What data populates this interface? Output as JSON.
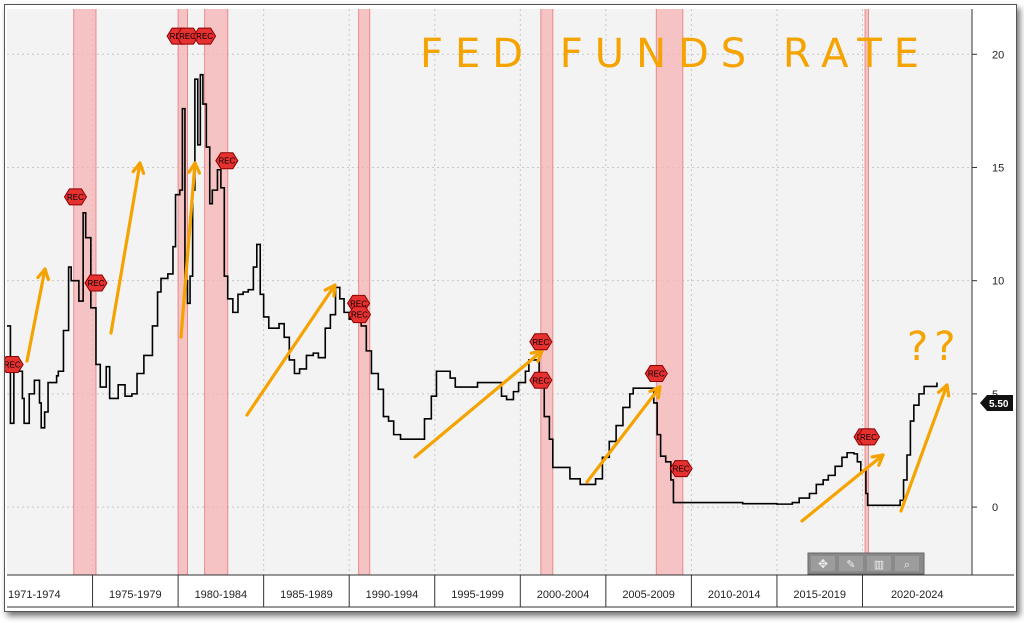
{
  "chart_data": {
    "type": "line",
    "title": "FED FUNDS RATE",
    "annotation_text": "??",
    "last_value_label": "5.50",
    "ylim": [
      -3,
      22
    ],
    "yticks": [
      0,
      5,
      10,
      15,
      20
    ],
    "x_periods": [
      "1971-1974",
      "1975-1979",
      "1980-1984",
      "1985-1989",
      "1990-1994",
      "1995-1999",
      "2000-2004",
      "2005-2009",
      "2010-2014",
      "2015-2019",
      "2020-2024"
    ],
    "recession_label": "REC",
    "recessions": [
      [
        1973.9,
        1975.2
      ],
      [
        1980.0,
        1980.55
      ],
      [
        1981.55,
        1982.9
      ],
      [
        1990.55,
        1991.2
      ],
      [
        2001.2,
        2001.9
      ],
      [
        2007.95,
        2009.5
      ],
      [
        2020.15,
        2020.35
      ]
    ],
    "rec_markers": [
      [
        1970.3,
        6.3
      ],
      [
        1974.0,
        13.7
      ],
      [
        1975.2,
        9.9
      ],
      [
        1980.0,
        20.8
      ],
      [
        1980.55,
        20.8
      ],
      [
        1981.55,
        20.8
      ],
      [
        1982.85,
        15.3
      ],
      [
        1990.55,
        9.0
      ],
      [
        1990.6,
        8.5
      ],
      [
        2001.2,
        7.3
      ],
      [
        2001.2,
        5.6
      ],
      [
        2007.95,
        5.9
      ],
      [
        2009.4,
        1.7
      ],
      [
        2020.15,
        3.1
      ],
      [
        2020.35,
        3.1
      ]
    ],
    "series": [
      {
        "values": [
          [
            1970.0,
            8.0
          ],
          [
            1970.2,
            3.7
          ],
          [
            1970.4,
            6.0
          ],
          [
            1970.6,
            6.0
          ],
          [
            1970.9,
            4.8
          ],
          [
            1971.0,
            3.7
          ],
          [
            1971.3,
            5.0
          ],
          [
            1971.6,
            5.6
          ],
          [
            1971.9,
            4.6
          ],
          [
            1972.0,
            3.5
          ],
          [
            1972.2,
            4.2
          ],
          [
            1972.4,
            5.5
          ],
          [
            1972.6,
            5.5
          ],
          [
            1972.9,
            5.8
          ],
          [
            1973.0,
            6.0
          ],
          [
            1973.3,
            7.8
          ],
          [
            1973.6,
            10.6
          ],
          [
            1973.75,
            10.0
          ],
          [
            1973.9,
            10.0
          ],
          [
            1974.2,
            9.1
          ],
          [
            1974.45,
            13.0
          ],
          [
            1974.6,
            11.9
          ],
          [
            1974.9,
            8.8
          ],
          [
            1975.2,
            6.3
          ],
          [
            1975.45,
            5.3
          ],
          [
            1975.8,
            6.2
          ],
          [
            1976.0,
            4.8
          ],
          [
            1976.5,
            5.4
          ],
          [
            1976.9,
            4.9
          ],
          [
            1977.3,
            5.0
          ],
          [
            1977.6,
            5.9
          ],
          [
            1978.0,
            6.7
          ],
          [
            1978.5,
            8.0
          ],
          [
            1978.8,
            9.5
          ],
          [
            1979.0,
            10.1
          ],
          [
            1979.4,
            10.3
          ],
          [
            1979.7,
            11.5
          ],
          [
            1979.85,
            13.8
          ],
          [
            1980.1,
            14.0
          ],
          [
            1980.25,
            17.6
          ],
          [
            1980.4,
            10.0
          ],
          [
            1980.55,
            9.0
          ],
          [
            1980.7,
            10.2
          ],
          [
            1980.85,
            14.0
          ],
          [
            1980.98,
            18.9
          ],
          [
            1981.15,
            16.0
          ],
          [
            1981.3,
            19.1
          ],
          [
            1981.45,
            17.8
          ],
          [
            1981.65,
            15.9
          ],
          [
            1981.85,
            13.4
          ],
          [
            1982.0,
            14.0
          ],
          [
            1982.3,
            14.9
          ],
          [
            1982.5,
            14.1
          ],
          [
            1982.7,
            10.2
          ],
          [
            1982.9,
            9.2
          ],
          [
            1983.2,
            8.6
          ],
          [
            1983.5,
            9.4
          ],
          [
            1983.8,
            9.5
          ],
          [
            1984.1,
            9.6
          ],
          [
            1984.4,
            10.6
          ],
          [
            1984.6,
            11.6
          ],
          [
            1984.8,
            9.4
          ],
          [
            1985.0,
            8.4
          ],
          [
            1985.3,
            7.9
          ],
          [
            1985.6,
            7.9
          ],
          [
            1985.9,
            8.1
          ],
          [
            1986.2,
            7.5
          ],
          [
            1986.5,
            6.5
          ],
          [
            1986.8,
            5.9
          ],
          [
            1987.1,
            6.1
          ],
          [
            1987.5,
            6.7
          ],
          [
            1987.9,
            6.8
          ],
          [
            1988.2,
            6.6
          ],
          [
            1988.6,
            7.9
          ],
          [
            1988.9,
            8.5
          ],
          [
            1989.2,
            9.7
          ],
          [
            1989.45,
            9.2
          ],
          [
            1989.7,
            8.6
          ],
          [
            1990.0,
            8.3
          ],
          [
            1990.4,
            8.2
          ],
          [
            1990.7,
            8.0
          ],
          [
            1991.0,
            6.9
          ],
          [
            1991.3,
            5.9
          ],
          [
            1991.7,
            5.2
          ],
          [
            1992.0,
            4.0
          ],
          [
            1992.3,
            3.8
          ],
          [
            1992.6,
            3.2
          ],
          [
            1993.0,
            3.0
          ],
          [
            1993.6,
            3.0
          ],
          [
            1994.1,
            3.0
          ],
          [
            1994.4,
            3.9
          ],
          [
            1994.8,
            4.9
          ],
          [
            1995.1,
            6.0
          ],
          [
            1995.5,
            6.0
          ],
          [
            1995.9,
            5.7
          ],
          [
            1996.2,
            5.3
          ],
          [
            1997.0,
            5.3
          ],
          [
            1997.5,
            5.5
          ],
          [
            1998.0,
            5.5
          ],
          [
            1998.6,
            5.5
          ],
          [
            1998.9,
            4.9
          ],
          [
            1999.2,
            4.75
          ],
          [
            1999.6,
            5.1
          ],
          [
            1999.9,
            5.5
          ],
          [
            2000.3,
            6.0
          ],
          [
            2000.5,
            6.5
          ],
          [
            2000.9,
            6.5
          ],
          [
            2001.1,
            5.5
          ],
          [
            2001.4,
            4.0
          ],
          [
            2001.7,
            3.0
          ],
          [
            2001.9,
            1.75
          ],
          [
            2002.3,
            1.75
          ],
          [
            2002.9,
            1.25
          ],
          [
            2003.5,
            1.0
          ],
          [
            2004.0,
            1.0
          ],
          [
            2004.4,
            1.25
          ],
          [
            2004.8,
            2.2
          ],
          [
            2005.2,
            2.9
          ],
          [
            2005.6,
            3.6
          ],
          [
            2006.0,
            4.4
          ],
          [
            2006.4,
            5.0
          ],
          [
            2006.6,
            5.25
          ],
          [
            2007.2,
            5.25
          ],
          [
            2007.6,
            5.25
          ],
          [
            2007.8,
            4.6
          ],
          [
            2008.0,
            3.2
          ],
          [
            2008.2,
            2.25
          ],
          [
            2008.5,
            2.0
          ],
          [
            2008.8,
            1.2
          ],
          [
            2008.95,
            0.2
          ],
          [
            2009.5,
            0.2
          ],
          [
            2011.0,
            0.2
          ],
          [
            2013.0,
            0.15
          ],
          [
            2015.0,
            0.13
          ],
          [
            2015.9,
            0.2
          ],
          [
            2016.3,
            0.4
          ],
          [
            2016.9,
            0.6
          ],
          [
            2017.3,
            1.0
          ],
          [
            2017.7,
            1.2
          ],
          [
            2018.0,
            1.4
          ],
          [
            2018.4,
            1.8
          ],
          [
            2018.8,
            2.2
          ],
          [
            2019.1,
            2.4
          ],
          [
            2019.5,
            2.35
          ],
          [
            2019.7,
            2.0
          ],
          [
            2019.9,
            1.6
          ],
          [
            2020.1,
            1.6
          ],
          [
            2020.2,
            0.6
          ],
          [
            2020.3,
            0.08
          ],
          [
            2021.0,
            0.08
          ],
          [
            2022.0,
            0.08
          ],
          [
            2022.2,
            0.3
          ],
          [
            2022.4,
            1.2
          ],
          [
            2022.6,
            2.3
          ],
          [
            2022.8,
            3.8
          ],
          [
            2023.0,
            4.5
          ],
          [
            2023.3,
            5.0
          ],
          [
            2023.6,
            5.33
          ],
          [
            2024.0,
            5.33
          ],
          [
            2024.35,
            5.5
          ]
        ]
      }
    ]
  },
  "toolbar": {
    "icons": [
      "move-icon",
      "draw-icon",
      "bars-icon",
      "zoom-icon"
    ]
  }
}
